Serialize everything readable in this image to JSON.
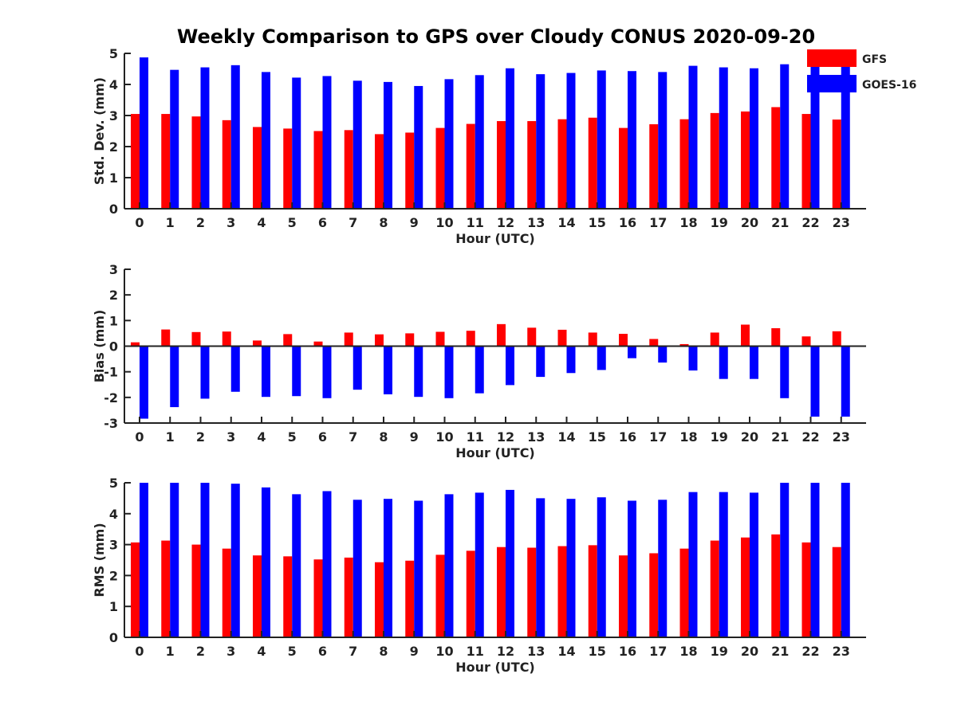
{
  "title": "Weekly Comparison to GPS over Cloudy CONUS 2020-09-20",
  "legend": {
    "position": "top-right",
    "items": [
      {
        "name": "GFS",
        "color": "#ff0000"
      },
      {
        "name": "GOES-16",
        "color": "#0000ff"
      }
    ]
  },
  "chart_data": [
    {
      "type": "bar",
      "xlabel": "Hour (UTC)",
      "ylabel": "Std. Dev. (mm)",
      "ylim": [
        0,
        5
      ],
      "yticks": [
        "0",
        "1",
        "2",
        "3",
        "4",
        "5"
      ],
      "categories": [
        "0",
        "1",
        "2",
        "3",
        "4",
        "5",
        "6",
        "7",
        "8",
        "9",
        "10",
        "11",
        "12",
        "13",
        "14",
        "15",
        "16",
        "17",
        "18",
        "19",
        "20",
        "21",
        "22",
        "23"
      ],
      "series": [
        {
          "name": "GFS",
          "color": "#ff0000",
          "values": [
            3.05,
            3.05,
            2.97,
            2.85,
            2.63,
            2.58,
            2.5,
            2.53,
            2.4,
            2.45,
            2.6,
            2.73,
            2.82,
            2.82,
            2.88,
            2.93,
            2.6,
            2.72,
            2.88,
            3.08,
            3.13,
            3.27,
            3.05,
            2.87
          ]
        },
        {
          "name": "GOES-16",
          "color": "#0000ff",
          "values": [
            4.87,
            4.47,
            4.55,
            4.62,
            4.4,
            4.22,
            4.27,
            4.12,
            4.08,
            3.95,
            4.17,
            4.3,
            4.52,
            4.33,
            4.37,
            4.45,
            4.43,
            4.4,
            4.6,
            4.55,
            4.52,
            4.65,
            4.77,
            4.6
          ]
        }
      ]
    },
    {
      "type": "bar",
      "xlabel": "Hour (UTC)",
      "ylabel": "Bias (mm)",
      "ylim": [
        -3,
        3
      ],
      "yticks": [
        "-3",
        "-2",
        "-1",
        "0",
        "1",
        "2",
        "3"
      ],
      "zero_line": true,
      "categories": [
        "0",
        "1",
        "2",
        "3",
        "4",
        "5",
        "6",
        "7",
        "8",
        "9",
        "10",
        "11",
        "12",
        "13",
        "14",
        "15",
        "16",
        "17",
        "18",
        "19",
        "20",
        "21",
        "22",
        "23"
      ],
      "series": [
        {
          "name": "GFS",
          "color": "#ff0000",
          "values": [
            0.15,
            0.65,
            0.55,
            0.57,
            0.22,
            0.47,
            0.18,
            0.53,
            0.46,
            0.5,
            0.56,
            0.6,
            0.86,
            0.72,
            0.64,
            0.53,
            0.48,
            0.28,
            0.08,
            0.53,
            0.84,
            0.7,
            0.38,
            0.58
          ]
        },
        {
          "name": "GOES-16",
          "color": "#0000ff",
          "values": [
            -2.83,
            -2.38,
            -2.05,
            -1.78,
            -1.98,
            -1.95,
            -2.03,
            -1.7,
            -1.88,
            -1.98,
            -2.03,
            -1.84,
            -1.52,
            -1.2,
            -1.05,
            -0.93,
            -0.47,
            -0.64,
            -0.95,
            -1.28,
            -1.28,
            -2.03,
            -2.75,
            -2.75
          ]
        }
      ]
    },
    {
      "type": "bar",
      "xlabel": "Hour (UTC)",
      "ylabel": "RMS (mm)",
      "ylim": [
        0,
        5
      ],
      "yticks": [
        "0",
        "1",
        "2",
        "3",
        "4",
        "5"
      ],
      "categories": [
        "0",
        "1",
        "2",
        "3",
        "4",
        "5",
        "6",
        "7",
        "8",
        "9",
        "10",
        "11",
        "12",
        "13",
        "14",
        "15",
        "16",
        "17",
        "18",
        "19",
        "20",
        "21",
        "22",
        "23"
      ],
      "series": [
        {
          "name": "GFS",
          "color": "#ff0000",
          "values": [
            3.07,
            3.13,
            3.0,
            2.87,
            2.65,
            2.62,
            2.52,
            2.58,
            2.43,
            2.48,
            2.67,
            2.8,
            2.92,
            2.9,
            2.95,
            2.98,
            2.65,
            2.72,
            2.87,
            3.13,
            3.23,
            3.33,
            3.07,
            2.92
          ]
        },
        {
          "name": "GOES-16",
          "color": "#0000ff",
          "values": [
            5.0,
            5.0,
            5.0,
            4.97,
            4.85,
            4.63,
            4.73,
            4.45,
            4.48,
            4.42,
            4.63,
            4.68,
            4.77,
            4.5,
            4.48,
            4.53,
            4.42,
            4.45,
            4.7,
            4.7,
            4.68,
            5.0,
            5.0,
            5.0
          ]
        }
      ]
    }
  ]
}
